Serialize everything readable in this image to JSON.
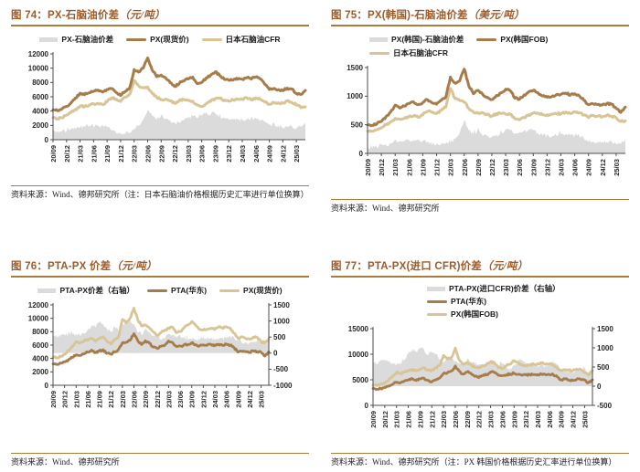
{
  "colors": {
    "title_brown": "#9E5B28",
    "rule_brown": "#A97B3E",
    "line_dark": "#A67C4B",
    "line_tan": "#D8C494",
    "area_gray": "#DBDBDB",
    "axis_text": "#262626",
    "axis_line": "#4d4d4d"
  },
  "tick_every": 3,
  "months": [
    "20/09",
    "20/10",
    "20/11",
    "20/12",
    "21/01",
    "21/02",
    "21/03",
    "21/04",
    "21/05",
    "21/06",
    "21/07",
    "21/08",
    "21/09",
    "21/10",
    "21/11",
    "21/12",
    "22/01",
    "22/02",
    "22/03",
    "22/04",
    "22/05",
    "22/06",
    "22/07",
    "22/08",
    "22/09",
    "22/10",
    "22/11",
    "22/12",
    "23/01",
    "23/02",
    "23/03",
    "23/04",
    "23/05",
    "23/06",
    "23/07",
    "23/08",
    "23/09",
    "23/10",
    "23/11",
    "23/12",
    "24/01",
    "24/02",
    "24/03",
    "24/04",
    "24/05",
    "24/06",
    "24/07",
    "24/08",
    "24/09",
    "24/10",
    "24/11",
    "24/12",
    "25/01",
    "25/02",
    "25/03",
    "25/04",
    "25/05"
  ],
  "x_tick_labels": [
    "20/09",
    "20/12",
    "21/03",
    "21/06",
    "21/09",
    "21/12",
    "22/03",
    "22/06",
    "22/09",
    "22/12",
    "23/03",
    "23/06",
    "23/09",
    "23/12",
    "24/03",
    "24/06",
    "24/09",
    "24/12",
    "25/03"
  ],
  "chart_data": [
    {
      "type": "line",
      "fig_no": "图 74：",
      "title": "PX-石脑油价差",
      "unit": "（元/吨）",
      "source": "资料来源：Wind、德邦研究所（注：日本石脑油价格根据历史汇率进行单位换算）",
      "ylim": [
        0,
        12000
      ],
      "ytick_step": 2000,
      "legend": [
        {
          "label": "PX-石脑油价差",
          "swatch": "area",
          "color_key": "area_gray"
        },
        {
          "label": "PX(现货价)",
          "swatch": "line",
          "color_key": "line_dark"
        },
        {
          "label": "日本石脑油CFR",
          "swatch": "line",
          "color_key": "line_tan"
        }
      ],
      "series": [
        {
          "name": "PX-石脑油价差",
          "kind": "area",
          "axis": "left",
          "color_key": "area_gray",
          "values": [
            1200,
            1150,
            1200,
            1200,
            1400,
            1600,
            1800,
            1700,
            1800,
            1800,
            1900,
            1700,
            1700,
            1300,
            900,
            800,
            900,
            900,
            1500,
            1900,
            2800,
            4100,
            3300,
            2900,
            3400,
            2900,
            2600,
            2300,
            2400,
            2600,
            3000,
            3300,
            3100,
            3400,
            3600,
            3600,
            3800,
            3200,
            2900,
            2900,
            2800,
            2800,
            2800,
            2800,
            2900,
            3000,
            2800,
            2500,
            2000,
            2000,
            1900,
            1800,
            1800,
            1900,
            1600,
            1800,
            2300
          ]
        },
        {
          "name": "日本石脑油CFR",
          "kind": "line",
          "axis": "left",
          "color_key": "line_tan",
          "values": [
            3000,
            2950,
            3100,
            3400,
            3800,
            4200,
            4700,
            4600,
            4800,
            5000,
            5100,
            4900,
            5300,
            5900,
            5700,
            5400,
            5900,
            6300,
            8300,
            7500,
            7200,
            7400,
            6500,
            5900,
            5600,
            5700,
            5400,
            5100,
            5500,
            5600,
            5500,
            5400,
            4800,
            4600,
            5000,
            5400,
            5700,
            5800,
            5500,
            5400,
            5600,
            5700,
            5600,
            5900,
            5600,
            5800,
            5700,
            5300,
            5000,
            5200,
            5100,
            5100,
            5400,
            5200,
            4900,
            4500,
            4600
          ]
        },
        {
          "name": "PX(现货价)",
          "kind": "line",
          "axis": "left",
          "color_key": "line_dark",
          "values": [
            4200,
            4100,
            4300,
            4600,
            5200,
            5800,
            6500,
            6300,
            6600,
            6800,
            7000,
            6600,
            7000,
            7200,
            6600,
            6200,
            6800,
            7200,
            9800,
            9400,
            10000,
            11500,
            9800,
            8800,
            9000,
            8600,
            8000,
            7400,
            7900,
            8200,
            8500,
            8700,
            7900,
            8000,
            8600,
            9000,
            9500,
            9000,
            8400,
            8300,
            8400,
            8500,
            8400,
            8700,
            8500,
            8800,
            8500,
            7800,
            7000,
            7200,
            7000,
            6900,
            7200,
            7100,
            6500,
            6300,
            6900
          ]
        }
      ]
    },
    {
      "type": "line",
      "fig_no": "图 75：",
      "title": "PX(韩国)-石脑油价差",
      "unit": "（美元/吨）",
      "source": "资料来源：Wind、德邦研究所",
      "ylim": [
        0,
        1500
      ],
      "ytick_step": 500,
      "legend": [
        {
          "label": "PX(韩国)-石脑油价差",
          "swatch": "area",
          "color_key": "area_gray"
        },
        {
          "label": "PX(韩国FOB)",
          "swatch": "line",
          "color_key": "line_dark"
        },
        {
          "label": "日本石脑油CFR",
          "swatch": "line",
          "color_key": "line_tan"
        }
      ],
      "series": [
        {
          "name": "PX(韩国)-石脑油价差",
          "kind": "area",
          "axis": "left",
          "color_key": "area_gray",
          "values": [
            100,
            100,
            110,
            110,
            140,
            170,
            230,
            200,
            220,
            230,
            240,
            220,
            210,
            200,
            160,
            170,
            170,
            180,
            190,
            260,
            340,
            580,
            390,
            330,
            400,
            320,
            300,
            290,
            320,
            350,
            430,
            420,
            360,
            370,
            390,
            400,
            410,
            350,
            320,
            310,
            310,
            320,
            340,
            340,
            320,
            320,
            300,
            260,
            220,
            210,
            200,
            200,
            200,
            210,
            170,
            160,
            240
          ]
        },
        {
          "name": "日本石脑油CFR",
          "kind": "line",
          "axis": "left",
          "color_key": "line_tan",
          "values": [
            400,
            390,
            410,
            450,
            500,
            550,
            610,
            590,
            610,
            640,
            660,
            630,
            680,
            740,
            720,
            690,
            760,
            810,
            1140,
            960,
            920,
            900,
            790,
            720,
            700,
            710,
            680,
            650,
            690,
            700,
            690,
            680,
            610,
            580,
            630,
            670,
            700,
            710,
            680,
            670,
            690,
            700,
            690,
            720,
            700,
            720,
            710,
            670,
            630,
            660,
            650,
            640,
            670,
            650,
            620,
            560,
            570
          ]
        },
        {
          "name": "PX(韩国FOB)",
          "kind": "line",
          "axis": "left",
          "color_key": "line_dark",
          "values": [
            500,
            490,
            520,
            560,
            640,
            720,
            840,
            790,
            830,
            870,
            900,
            850,
            890,
            940,
            880,
            860,
            930,
            990,
            1330,
            1220,
            1260,
            1480,
            1180,
            1050,
            1100,
            1030,
            980,
            940,
            1010,
            1050,
            1120,
            1100,
            970,
            950,
            1020,
            1070,
            1110,
            1060,
            1000,
            980,
            1000,
            1020,
            1030,
            1060,
            1020,
            1040,
            1010,
            930,
            850,
            870,
            850,
            840,
            870,
            860,
            790,
            720,
            810
          ]
        }
      ]
    },
    {
      "type": "line",
      "fig_no": "图 76：",
      "title": "PTA-PX 价差",
      "unit": "（元/吨）",
      "source": "资料来源：Wind、德邦研究所",
      "ylim": [
        0,
        12000
      ],
      "ytick_step": 2000,
      "ylim_right": [
        -1000,
        1500
      ],
      "ytick_step_right": 500,
      "legend": [
        {
          "label": "PTA-PX价差（右轴）",
          "swatch": "area",
          "color_key": "area_gray"
        },
        {
          "label": "PTA(华东)",
          "swatch": "line",
          "color_key": "line_dark"
        },
        {
          "label": "PX(现货价)",
          "swatch": "line",
          "color_key": "line_tan"
        }
      ],
      "series": [
        {
          "name": "PTA-PX价差（右轴）",
          "kind": "area",
          "axis": "right",
          "color_key": "area_gray",
          "values": [
            550,
            500,
            550,
            560,
            580,
            600,
            560,
            550,
            600,
            750,
            850,
            800,
            950,
            900,
            750,
            650,
            800,
            700,
            900,
            950,
            1050,
            900,
            650,
            550,
            750,
            650,
            550,
            500,
            450,
            450,
            600,
            550,
            500,
            550,
            450,
            400,
            450,
            400,
            420,
            500,
            450,
            450,
            400,
            450,
            430,
            480,
            520,
            480,
            400,
            350,
            330,
            300,
            350,
            400,
            420,
            250,
            350
          ]
        },
        {
          "name": "PX(现货价)",
          "kind": "line",
          "axis": "left",
          "color_key": "line_tan",
          "values": [
            4200,
            4100,
            4300,
            4600,
            5200,
            5800,
            6500,
            6300,
            6600,
            6800,
            7000,
            6600,
            7000,
            7200,
            6600,
            6200,
            6800,
            7200,
            9800,
            9400,
            10000,
            11500,
            9800,
            8800,
            9000,
            8600,
            8000,
            7400,
            7900,
            8200,
            8500,
            8700,
            7900,
            8000,
            8600,
            9000,
            9500,
            9000,
            8400,
            8300,
            8400,
            8500,
            8400,
            8700,
            8500,
            8800,
            8500,
            7800,
            7000,
            7200,
            7000,
            6900,
            7200,
            7100,
            6500,
            6300,
            6900
          ]
        },
        {
          "name": "PTA(华东)",
          "kind": "line",
          "axis": "left",
          "color_key": "line_dark",
          "values": [
            3250,
            3150,
            3300,
            3500,
            3800,
            4200,
            4500,
            4400,
            4700,
            5000,
            5200,
            4900,
            5100,
            5300,
            4800,
            4600,
            5000,
            5300,
            6300,
            6400,
            6700,
            7700,
            6600,
            6100,
            6600,
            6300,
            5700,
            5500,
            5800,
            6000,
            6600,
            6400,
            5800,
            5800,
            6000,
            6100,
            6300,
            6100,
            5900,
            6000,
            6000,
            6050,
            6000,
            6100,
            5950,
            6100,
            6000,
            5600,
            5000,
            5100,
            4950,
            4900,
            5100,
            5050,
            4900,
            4400,
            5000
          ]
        }
      ]
    },
    {
      "type": "line",
      "fig_no": "图 77：",
      "title": "PTA-PX(进口 CFR)价差",
      "unit": "（元/吨）",
      "source": "资料来源：Wind、德邦研究所（注：PX 韩国价格根据历史汇率进行单位换算）",
      "ylim": [
        0,
        15000
      ],
      "ytick_step": 5000,
      "ylim_right": [
        -500,
        1500
      ],
      "ytick_step_right": 500,
      "legend": [
        {
          "label": "PTA-PX(进口CFR)价差（右轴）",
          "swatch": "area",
          "color_key": "area_gray"
        },
        {
          "label": "PTA(华东)",
          "swatch": "line",
          "color_key": "line_dark"
        },
        {
          "label": "PX(韩国FOB)",
          "swatch": "line",
          "color_key": "line_tan"
        }
      ],
      "series": [
        {
          "name": "PTA-PX(进口CFR)价差（右轴）",
          "kind": "area",
          "axis": "right",
          "color_key": "area_gray",
          "values": [
            650,
            600,
            680,
            700,
            650,
            600,
            550,
            600,
            700,
            850,
            950,
            900,
            1000,
            950,
            800,
            900,
            850,
            700,
            600,
            750,
            700,
            650,
            600,
            550,
            700,
            650,
            600,
            550,
            500,
            550,
            650,
            600,
            550,
            600,
            500,
            450,
            550,
            650,
            700,
            600,
            550,
            550,
            500,
            550,
            520,
            560,
            600,
            550,
            450,
            400,
            380,
            350,
            400,
            450,
            500,
            300,
            550
          ]
        },
        {
          "name": "PX(韩国FOB)",
          "kind": "line",
          "axis": "left",
          "color_key": "line_tan",
          "values": [
            4000,
            3900,
            4100,
            4400,
            5000,
            5700,
            6500,
            6200,
            6500,
            6800,
            7000,
            6700,
            7000,
            7300,
            6900,
            6800,
            7300,
            7800,
            9800,
            9100,
            9300,
            11200,
            8900,
            8000,
            8400,
            7900,
            7500,
            7300,
            7700,
            8000,
            8500,
            8300,
            7400,
            7200,
            7700,
            8100,
            8800,
            8400,
            7900,
            7800,
            7900,
            8100,
            8100,
            8300,
            8000,
            8200,
            7900,
            7300,
            6800,
            7000,
            6900,
            6800,
            7100,
            7000,
            6500,
            6000,
            6800
          ]
        },
        {
          "name": "PTA(华东)",
          "kind": "line",
          "axis": "left",
          "color_key": "line_dark",
          "values": [
            3250,
            3150,
            3300,
            3500,
            3800,
            4200,
            4500,
            4400,
            4700,
            5000,
            5200,
            4900,
            5100,
            5300,
            4800,
            4600,
            5000,
            5300,
            6300,
            6400,
            6700,
            7700,
            6600,
            6100,
            6600,
            6300,
            5700,
            5500,
            5800,
            6000,
            6600,
            6400,
            5800,
            5800,
            6000,
            6100,
            6300,
            6100,
            5900,
            6000,
            6000,
            6050,
            6000,
            6100,
            5950,
            6100,
            6000,
            5600,
            5000,
            5100,
            4950,
            4900,
            5100,
            5050,
            4900,
            4400,
            5000
          ]
        }
      ]
    }
  ]
}
